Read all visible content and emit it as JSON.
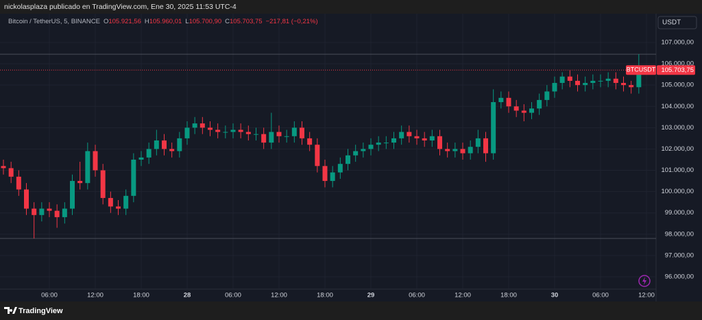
{
  "top_bar": "nickolasplaza publicado en TradingView.com, Ene 30, 2025 11:53 UTC-4",
  "footer_brand": "TradingView",
  "chart_data": {
    "type": "candlestick",
    "symbol": "Bitcoin / TetherUS, 5, BINANCE",
    "ohlc_legend": [
      {
        "label": "O",
        "value": "105.921,56"
      },
      {
        "label": "H",
        "value": "105.960,01"
      },
      {
        "label": "L",
        "value": "105.700,90"
      },
      {
        "label": "C",
        "value": "105.703,75"
      }
    ],
    "change": "−217,81 (−0,21%)",
    "currency": "USDT",
    "categories": [
      null,
      null,
      null,
      null,
      null,
      null,
      "06:00",
      null,
      null,
      null,
      null,
      null,
      "12:00",
      null,
      null,
      null,
      null,
      null,
      "18:00",
      null,
      null,
      null,
      null,
      null,
      "28",
      null,
      null,
      null,
      null,
      null,
      "06:00",
      null,
      null,
      null,
      null,
      null,
      "12:00",
      null,
      null,
      null,
      null,
      null,
      "18:00",
      null,
      null,
      null,
      null,
      null,
      "29",
      null,
      null,
      null,
      null,
      null,
      "06:00",
      null,
      null,
      null,
      null,
      null,
      "12:00",
      null,
      null,
      null,
      null,
      null,
      "18:00",
      null,
      null,
      null,
      null,
      null,
      "30",
      null,
      null,
      null,
      null,
      null,
      "06:00",
      null,
      null,
      null,
      null,
      null,
      "12:00"
    ],
    "open": [
      101200,
      101100,
      100700,
      100100,
      99200,
      98900,
      99200,
      99100,
      98800,
      99200,
      100500,
      100400,
      101900,
      101000,
      99700,
      99300,
      99200,
      99800,
      101500,
      101600,
      102000,
      102400,
      102000,
      101900,
      102500,
      103000,
      103200,
      103000,
      102900,
      102800,
      102800,
      102900,
      102800,
      102700,
      102700,
      102300,
      102800,
      102600,
      102600,
      103000,
      102500,
      102200,
      101200,
      100500,
      100900,
      101300,
      101700,
      101900,
      102000,
      102200,
      102300,
      102300,
      102500,
      102800,
      102600,
      102500,
      102400,
      102600,
      102000,
      101900,
      102000,
      101800,
      102100,
      102500,
      101800,
      104200,
      104400,
      104000,
      103800,
      103700,
      103900,
      104300,
      104700,
      105100,
      105400,
      105200,
      105000,
      105100,
      105200,
      105200,
      105300,
      105100,
      105000,
      104900,
      null
    ],
    "high": [
      101500,
      101400,
      101000,
      100400,
      99500,
      99500,
      99500,
      99400,
      99500,
      100800,
      101400,
      102300,
      102200,
      101300,
      100000,
      99600,
      100100,
      101800,
      101900,
      102300,
      102900,
      102700,
      102300,
      102800,
      103300,
      103500,
      103500,
      103300,
      103200,
      103100,
      103200,
      103200,
      103100,
      103000,
      103000,
      103700,
      103100,
      102900,
      103300,
      103300,
      102800,
      102500,
      101500,
      101200,
      101600,
      102000,
      102200,
      102300,
      102500,
      102600,
      102600,
      102800,
      103100,
      103100,
      102900,
      102800,
      102900,
      102900,
      102300,
      102300,
      102300,
      102400,
      102900,
      102800,
      104800,
      104700,
      104700,
      104300,
      104100,
      104200,
      104600,
      105000,
      105400,
      105600,
      105700,
      105500,
      105400,
      105500,
      105500,
      105600,
      105600,
      105400,
      105200,
      106450,
      null
    ],
    "low": [
      100800,
      100400,
      99800,
      98900,
      97800,
      98600,
      98800,
      98300,
      98500,
      98900,
      100100,
      100100,
      100700,
      99400,
      99000,
      98900,
      98900,
      99500,
      101200,
      101300,
      101700,
      101700,
      101600,
      101600,
      102200,
      102700,
      102700,
      102600,
      102500,
      102500,
      102500,
      102500,
      102400,
      102400,
      102000,
      102000,
      102300,
      102300,
      102300,
      102200,
      101900,
      100900,
      100200,
      100200,
      100600,
      101000,
      101400,
      101600,
      101700,
      101900,
      102000,
      102000,
      102200,
      102300,
      102200,
      102100,
      102100,
      101700,
      101600,
      101600,
      101500,
      101500,
      101800,
      101400,
      101500,
      103900,
      103700,
      103500,
      103300,
      103400,
      103600,
      104000,
      104400,
      104800,
      104900,
      104700,
      104700,
      104800,
      104900,
      104900,
      104800,
      104700,
      104600,
      104600,
      null
    ],
    "close": [
      101100,
      100700,
      100100,
      99200,
      98900,
      99200,
      99100,
      98800,
      99200,
      100500,
      100400,
      101900,
      101000,
      99700,
      99300,
      99200,
      99800,
      101500,
      101600,
      102000,
      102400,
      102000,
      101900,
      102500,
      103000,
      103200,
      103000,
      102900,
      102800,
      102800,
      102900,
      102800,
      102700,
      102700,
      102300,
      102800,
      102600,
      102600,
      103000,
      102500,
      102200,
      101200,
      100500,
      100900,
      101300,
      101700,
      101900,
      102000,
      102200,
      102300,
      102300,
      102500,
      102800,
      102600,
      102500,
      102400,
      102600,
      102000,
      101900,
      102000,
      101800,
      102100,
      102500,
      101800,
      104200,
      104400,
      104000,
      103800,
      103700,
      103900,
      104300,
      104700,
      105100,
      105400,
      105200,
      105000,
      105100,
      105200,
      105200,
      105300,
      105100,
      105000,
      104900,
      105700,
      null
    ],
    "up_color": "#089981",
    "down_color": "#f23645",
    "ylim": [
      95420,
      108350
    ],
    "yticks": [
      {
        "value": 96000,
        "label": "96.000,00"
      },
      {
        "value": 97000,
        "label": "97.000,00"
      },
      {
        "value": 98000,
        "label": "98.000,00"
      },
      {
        "value": 99000,
        "label": "99.000,00"
      },
      {
        "value": 100000,
        "label": "100.000,00"
      },
      {
        "value": 101000,
        "label": "101.000,00"
      },
      {
        "value": 102000,
        "label": "102.000,00"
      },
      {
        "value": 103000,
        "label": "103.000,00"
      },
      {
        "value": 104000,
        "label": "104.000,00"
      },
      {
        "value": 105000,
        "label": "105.000,00"
      },
      {
        "value": 106000,
        "label": "106.000,00"
      },
      {
        "value": 107000,
        "label": "107.000,00"
      }
    ],
    "range_lines": [
      106450,
      97800
    ],
    "last_price": {
      "value": 105703.75,
      "label": "105.703,75",
      "badge": "BTCUSDT"
    },
    "grid": true
  }
}
